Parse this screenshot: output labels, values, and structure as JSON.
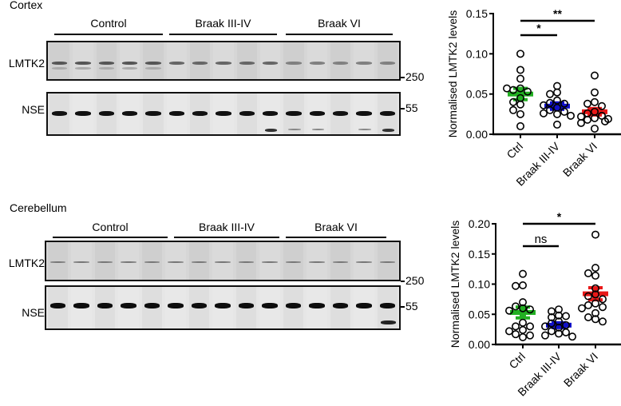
{
  "panels": {
    "cortex": {
      "title": "Cortex",
      "groups": [
        "Control",
        "Braak III-IV",
        "Braak VI"
      ],
      "rows": [
        {
          "label": "LMTK2",
          "mw_marker": "250"
        },
        {
          "label": "NSE",
          "mw_marker": "55"
        }
      ]
    },
    "cerebellum": {
      "title": "Cerebellum",
      "groups": [
        "Control",
        "Braak III-IV",
        "Braak VI"
      ],
      "rows": [
        {
          "label": "LMTK2",
          "mw_marker": "250"
        },
        {
          "label": "NSE",
          "mw_marker": "55"
        }
      ]
    }
  },
  "colors": {
    "ctrl": "#22b022",
    "braak34": "#1010c8",
    "braak6": "#e81818"
  },
  "chart_data": [
    {
      "type": "scatter",
      "title": "Cortex",
      "xlabel": "",
      "ylabel": "Normalised LMTK2 levels",
      "categories": [
        "Ctrl",
        "Braak III-IV",
        "Braak VI"
      ],
      "ylim": [
        0,
        0.15
      ],
      "yticks": [
        "0.00",
        "0.05",
        "0.10",
        "0.15"
      ],
      "grid": false,
      "series": [
        {
          "name": "Ctrl",
          "color": "#22b022",
          "mean": 0.05,
          "sem": 0.007,
          "values": [
            0.1,
            0.08,
            0.069,
            0.057,
            0.055,
            0.053,
            0.057,
            0.045,
            0.04,
            0.037,
            0.03,
            0.025,
            0.01
          ]
        },
        {
          "name": "Braak III-IV",
          "color": "#1010c8",
          "mean": 0.035,
          "sem": 0.004,
          "values": [
            0.06,
            0.052,
            0.05,
            0.042,
            0.039,
            0.038,
            0.036,
            0.033,
            0.03,
            0.028,
            0.026,
            0.025,
            0.023,
            0.012
          ]
        },
        {
          "name": "Braak VI",
          "color": "#e81818",
          "mean": 0.028,
          "sem": 0.004,
          "values": [
            0.073,
            0.052,
            0.04,
            0.038,
            0.035,
            0.028,
            0.026,
            0.023,
            0.022,
            0.02,
            0.019,
            0.018,
            0.016,
            0.014,
            0.007
          ]
        }
      ],
      "annotations": [
        {
          "from": "Ctrl",
          "to": "Braak III-IV",
          "label": "*"
        },
        {
          "from": "Ctrl",
          "to": "Braak VI",
          "label": "**"
        }
      ]
    },
    {
      "type": "scatter",
      "title": "Cerebellum",
      "xlabel": "",
      "ylabel": "Normalised LMTK2 levels",
      "categories": [
        "Ctrl",
        "Braak III-IV",
        "Braak VI"
      ],
      "ylim": [
        0,
        0.2
      ],
      "yticks": [
        "0.00",
        "0.05",
        "0.10",
        "0.15",
        "0.20"
      ],
      "grid": false,
      "series": [
        {
          "name": "Ctrl",
          "color": "#22b022",
          "mean": 0.053,
          "sem": 0.009,
          "values": [
            0.117,
            0.098,
            0.097,
            0.07,
            0.063,
            0.06,
            0.058,
            0.056,
            0.036,
            0.03,
            0.03,
            0.024,
            0.022,
            0.017,
            0.015,
            0.012
          ]
        },
        {
          "name": "Braak III-IV",
          "color": "#1010c8",
          "mean": 0.032,
          "sem": 0.004,
          "values": [
            0.058,
            0.055,
            0.048,
            0.047,
            0.045,
            0.038,
            0.035,
            0.032,
            0.03,
            0.028,
            0.022,
            0.02,
            0.018,
            0.015,
            0.013
          ]
        },
        {
          "name": "Braak VI",
          "color": "#e81818",
          "mean": 0.084,
          "sem": 0.01,
          "values": [
            0.182,
            0.127,
            0.118,
            0.114,
            0.093,
            0.083,
            0.08,
            0.075,
            0.068,
            0.065,
            0.062,
            0.06,
            0.052,
            0.045,
            0.042,
            0.038
          ]
        }
      ],
      "annotations": [
        {
          "from": "Ctrl",
          "to": "Braak III-IV",
          "label": "ns"
        },
        {
          "from": "Ctrl",
          "to": "Braak VI",
          "label": "*"
        }
      ]
    }
  ]
}
